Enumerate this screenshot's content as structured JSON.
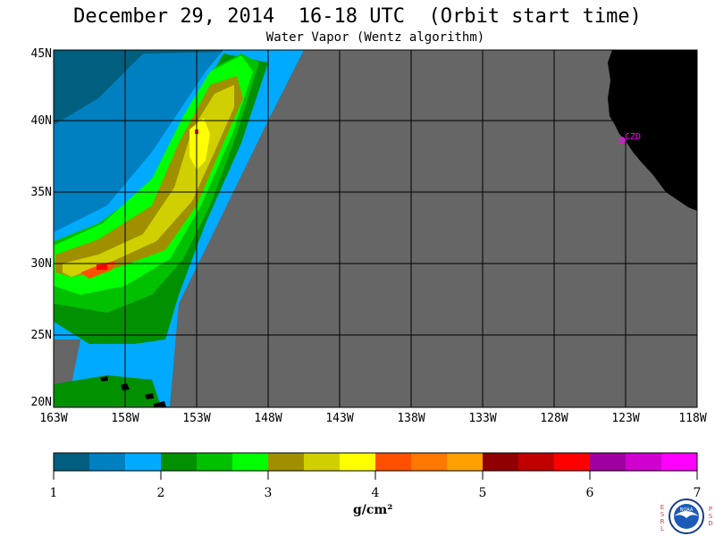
{
  "header": {
    "title": "December 29, 2014  16-18 UTC  (Orbit start time)",
    "subtitle": "Water Vapor (Wentz algorithm)"
  },
  "map": {
    "lat_labels": [
      "45N",
      "40N",
      "35N",
      "30N",
      "25N",
      "20N"
    ],
    "lon_labels": [
      "163W",
      "158W",
      "153W",
      "148W",
      "143W",
      "138W",
      "133W",
      "128W",
      "123W",
      "118W"
    ],
    "lat_range": [
      20,
      45
    ],
    "lon_range": [
      -163,
      -118
    ],
    "station_label": "CZD",
    "colors": {
      "no_data": "#666666",
      "land": "#000000",
      "grid": "#000000",
      "station": "#ff00ff"
    }
  },
  "colorbar": {
    "tick_labels": [
      "1",
      "2",
      "3",
      "4",
      "5",
      "6",
      "7"
    ],
    "units": "g/cm²",
    "colors": [
      "#005f7f",
      "#0080c0",
      "#00aaff",
      "#009000",
      "#00c000",
      "#00ff00",
      "#a09000",
      "#d0d000",
      "#ffff00",
      "#ff5000",
      "#ff7800",
      "#ffa000",
      "#900000",
      "#c00000",
      "#ff0000",
      "#a000a0",
      "#d000d0",
      "#ff00ff"
    ]
  },
  "logo": {
    "left_letters": [
      "E",
      "S",
      "R",
      "L"
    ],
    "right_letters": [
      "P",
      "S",
      "D"
    ],
    "text": "NOAA"
  }
}
